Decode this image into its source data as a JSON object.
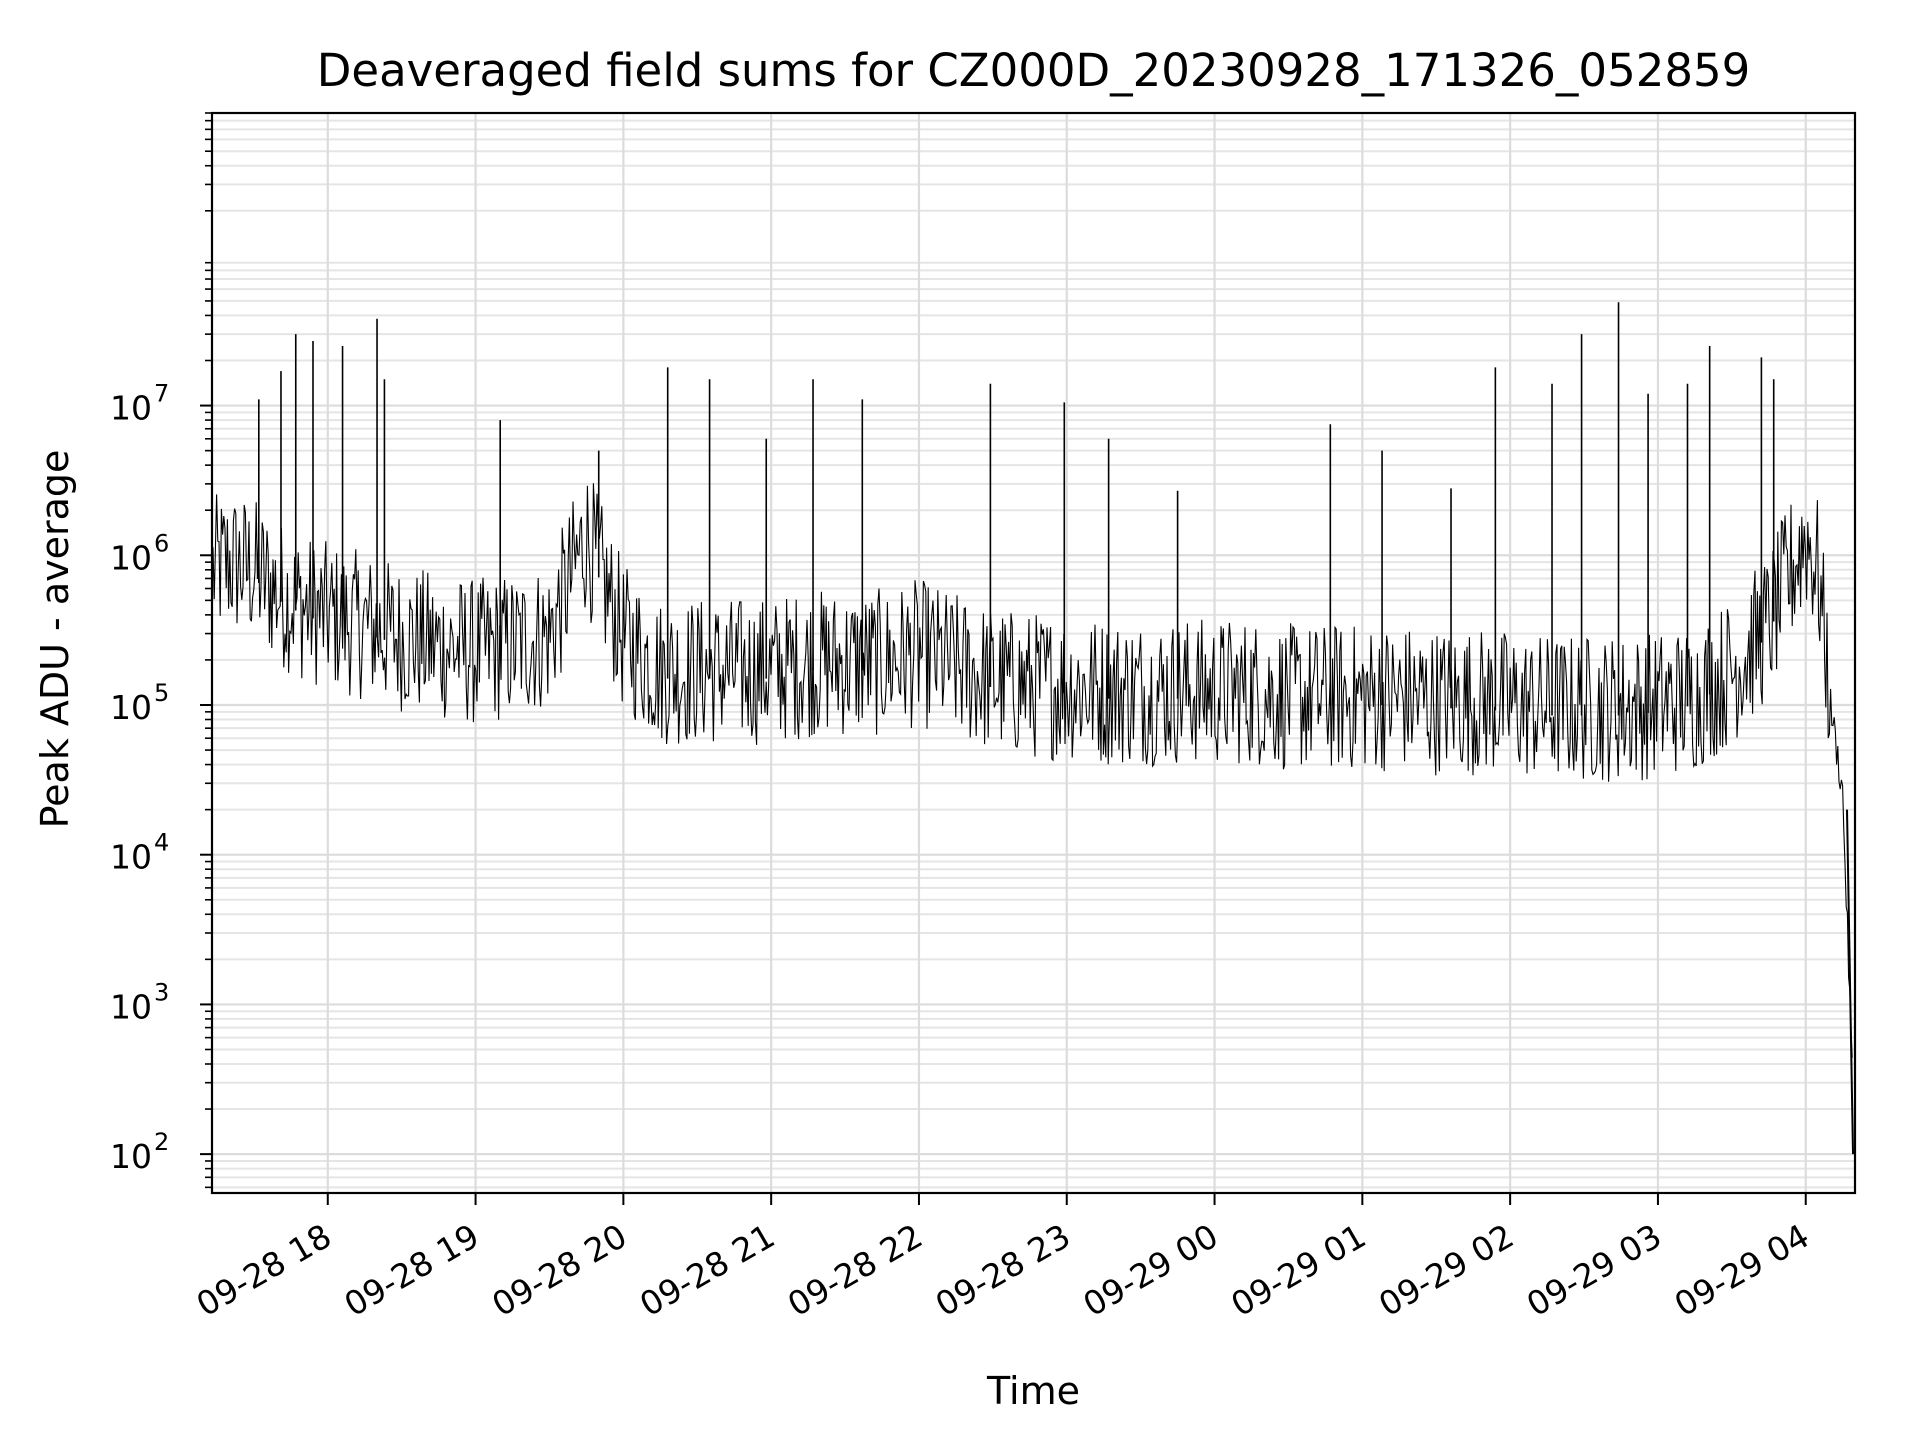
{
  "chart_data": {
    "type": "line",
    "title": "Deaveraged field sums for CZ000D_20230928_171326_052859",
    "xlabel": "Time",
    "ylabel": "Peak ADU - average",
    "yscale": "log",
    "ylim": [
      55,
      900000000
    ],
    "xlim": [
      "2023-09-28 17:13",
      "2023-09-29 04:20"
    ],
    "grid": true,
    "line_color": "#000000",
    "x_ticks": [
      {
        "t": "2023-09-28 18:00",
        "label": "09-28 18"
      },
      {
        "t": "2023-09-28 19:00",
        "label": "09-28 19"
      },
      {
        "t": "2023-09-28 20:00",
        "label": "09-28 20"
      },
      {
        "t": "2023-09-28 21:00",
        "label": "09-28 21"
      },
      {
        "t": "2023-09-28 22:00",
        "label": "09-28 22"
      },
      {
        "t": "2023-09-28 23:00",
        "label": "09-28 23"
      },
      {
        "t": "2023-09-29 00:00",
        "label": "09-29 00"
      },
      {
        "t": "2023-09-29 01:00",
        "label": "09-29 01"
      },
      {
        "t": "2023-09-29 02:00",
        "label": "09-29 02"
      },
      {
        "t": "2023-09-29 03:00",
        "label": "09-29 03"
      },
      {
        "t": "2023-09-29 04:00",
        "label": "09-29 04"
      }
    ],
    "y_ticks": [
      {
        "value": 100,
        "base": "10",
        "exp": "2"
      },
      {
        "value": 1000,
        "base": "10",
        "exp": "3"
      },
      {
        "value": 10000,
        "base": "10",
        "exp": "4"
      },
      {
        "value": 100000,
        "base": "10",
        "exp": "5"
      },
      {
        "value": 1000000,
        "base": "10",
        "exp": "6"
      },
      {
        "value": 10000000,
        "base": "10",
        "exp": "7"
      }
    ],
    "series": [
      {
        "x": [
          "2023-09-28 17:13",
          "2023-09-28 17:20",
          "2023-09-28 17:30",
          "2023-09-28 17:40",
          "2023-09-28 17:50",
          "2023-09-28 18:00",
          "2023-09-28 18:15",
          "2023-09-28 18:30",
          "2023-09-28 18:45",
          "2023-09-28 19:00",
          "2023-09-28 19:15",
          "2023-09-28 19:30",
          "2023-09-28 19:45",
          "2023-09-28 20:00",
          "2023-09-28 20:15",
          "2023-09-28 20:30",
          "2023-09-28 20:45",
          "2023-09-28 21:00",
          "2023-09-28 21:15",
          "2023-09-28 21:30",
          "2023-09-28 21:45",
          "2023-09-28 22:00",
          "2023-09-28 22:15",
          "2023-09-28 22:30",
          "2023-09-28 22:45",
          "2023-09-28 23:00",
          "2023-09-28 23:15",
          "2023-09-28 23:30",
          "2023-09-28 23:45",
          "2023-09-29 00:00",
          "2023-09-29 00:15",
          "2023-09-29 00:30",
          "2023-09-29 00:45",
          "2023-09-29 01:00",
          "2023-09-29 01:15",
          "2023-09-29 01:30",
          "2023-09-29 01:45",
          "2023-09-29 02:00",
          "2023-09-29 02:15",
          "2023-09-29 02:30",
          "2023-09-29 02:45",
          "2023-09-29 03:00",
          "2023-09-29 03:15",
          "2023-09-29 03:30",
          "2023-09-29 03:45",
          "2023-09-29 04:00",
          "2023-09-29 04:05",
          "2023-09-29 04:10",
          "2023-09-29 04:15",
          "2023-09-29 04:20"
        ],
        "y": [
          700000,
          800000,
          700000,
          500000,
          400000,
          350000,
          300000,
          250000,
          220000,
          200000,
          220000,
          260000,
          1200000,
          250000,
          150000,
          150000,
          150000,
          150000,
          170000,
          170000,
          170000,
          200000,
          160000,
          130000,
          120000,
          120000,
          110000,
          110000,
          110000,
          110000,
          110000,
          100000,
          100000,
          100000,
          100000,
          95000,
          95000,
          90000,
          85000,
          85000,
          85000,
          90000,
          100000,
          150000,
          300000,
          1200000,
          700000,
          100000,
          25000,
          100
        ]
      }
    ],
    "spikes": [
      {
        "t": "2023-09-28 17:32",
        "value": 11000000
      },
      {
        "t": "2023-09-28 17:41",
        "value": 17000000
      },
      {
        "t": "2023-09-28 17:47",
        "value": 30000000
      },
      {
        "t": "2023-09-28 17:54",
        "value": 27000000
      },
      {
        "t": "2023-09-28 18:06",
        "value": 25000000
      },
      {
        "t": "2023-09-28 18:20",
        "value": 38000000
      },
      {
        "t": "2023-09-28 18:23",
        "value": 15000000
      },
      {
        "t": "2023-09-28 19:10",
        "value": 8000000
      },
      {
        "t": "2023-09-28 19:50",
        "value": 5000000
      },
      {
        "t": "2023-09-28 20:18",
        "value": 18000000
      },
      {
        "t": "2023-09-28 20:35",
        "value": 15000000
      },
      {
        "t": "2023-09-28 20:58",
        "value": 6000000
      },
      {
        "t": "2023-09-28 21:17",
        "value": 15000000
      },
      {
        "t": "2023-09-28 21:37",
        "value": 11000000
      },
      {
        "t": "2023-09-28 22:29",
        "value": 14000000
      },
      {
        "t": "2023-09-28 22:59",
        "value": 10500000
      },
      {
        "t": "2023-09-28 23:17",
        "value": 6000000
      },
      {
        "t": "2023-09-28 23:45",
        "value": 2700000
      },
      {
        "t": "2023-09-29 00:47",
        "value": 7500000
      },
      {
        "t": "2023-09-29 01:08",
        "value": 5000000
      },
      {
        "t": "2023-09-29 01:36",
        "value": 2800000
      },
      {
        "t": "2023-09-29 01:54",
        "value": 18000000
      },
      {
        "t": "2023-09-29 02:17",
        "value": 14000000
      },
      {
        "t": "2023-09-29 02:29",
        "value": 30000000
      },
      {
        "t": "2023-09-29 02:44",
        "value": 49000000
      },
      {
        "t": "2023-09-29 02:56",
        "value": 12000000
      },
      {
        "t": "2023-09-29 03:12",
        "value": 14000000
      },
      {
        "t": "2023-09-29 03:21",
        "value": 25000000
      },
      {
        "t": "2023-09-29 03:42",
        "value": 21000000
      },
      {
        "t": "2023-09-29 03:47",
        "value": 15000000
      }
    ]
  }
}
